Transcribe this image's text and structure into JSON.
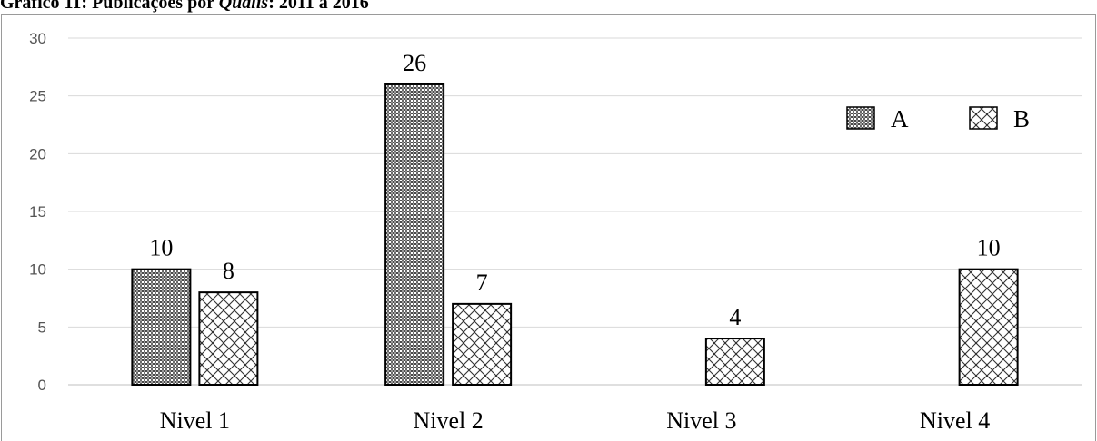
{
  "chart_data": {
    "type": "bar",
    "title_prefix": "Gráfico 11: Publicações por ",
    "title_italic": "Qualis",
    "title_suffix": ": 2011 a 2016",
    "categories": [
      "Nivel 1",
      "Nivel 2",
      "Nivel 3",
      "Nivel 4"
    ],
    "series": [
      {
        "name": "A",
        "values": [
          10,
          26,
          null,
          null
        ],
        "pattern": "dense-dots"
      },
      {
        "name": "B",
        "values": [
          8,
          7,
          4,
          10
        ],
        "pattern": "crosshatch"
      }
    ],
    "yticks": [
      "0",
      "5",
      "10",
      "15",
      "20",
      "25",
      "30"
    ],
    "ylim": [
      0,
      30
    ],
    "grid": true,
    "legend_position": "top-right",
    "colors": {
      "grid": "#d9d9d9",
      "bar_outline": "#000000",
      "pattern_dark": "#555555",
      "tick_text": "#555555"
    }
  }
}
